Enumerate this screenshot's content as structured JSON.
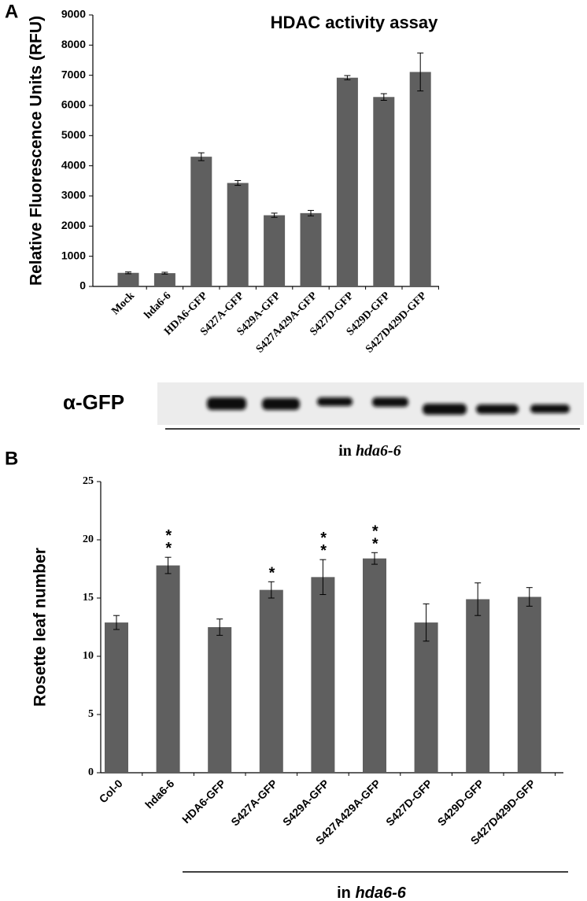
{
  "chart_data": [
    {
      "type": "bar",
      "title": "HDAC activity assay",
      "ylabel": "Relative Fluorescence Units (RFU)",
      "categories": [
        "Mock",
        "hda6-6",
        "HDA6-GFP",
        "S427A-GFP",
        "S429A-GFP",
        "S427A429A-GFP",
        "S427D-GFP",
        "S429D-GFP",
        "S427D429D-GFP"
      ],
      "values": [
        450,
        440,
        4300,
        3430,
        2360,
        2430,
        6920,
        6280,
        7110
      ],
      "errors": [
        30,
        30,
        130,
        80,
        70,
        90,
        70,
        110,
        630
      ],
      "color": "#5f5f5f",
      "ylim": [
        0,
        9000
      ],
      "yticks": [
        0,
        1000,
        2000,
        3000,
        4000,
        5000,
        6000,
        7000,
        8000,
        9000
      ],
      "grid": false
    },
    {
      "type": "bar",
      "ylabel": "Rosette leaf number",
      "categories": [
        "Col-0",
        "hda6-6",
        "HDA6-GFP",
        "S427A-GFP",
        "S429A-GFP",
        "S427A429A-GFP",
        "S427D-GFP",
        "S429D-GFP",
        "S427D429D-GFP"
      ],
      "values": [
        12.9,
        17.8,
        12.5,
        15.7,
        16.8,
        18.4,
        12.9,
        14.9,
        15.1
      ],
      "errors": [
        0.6,
        0.7,
        0.7,
        0.7,
        1.5,
        0.5,
        1.6,
        1.4,
        0.8
      ],
      "significance": [
        null,
        "**",
        null,
        "*",
        "**",
        "**",
        null,
        null,
        null
      ],
      "color": "#5f5f5f",
      "ylim": [
        0,
        25
      ],
      "yticks": [
        0,
        5,
        10,
        15,
        20,
        25
      ],
      "grid": false
    }
  ],
  "panel_labels": [
    "A",
    "B"
  ],
  "blot_label": "α-GFP",
  "group_label": [
    "in",
    "hda6-6"
  ]
}
